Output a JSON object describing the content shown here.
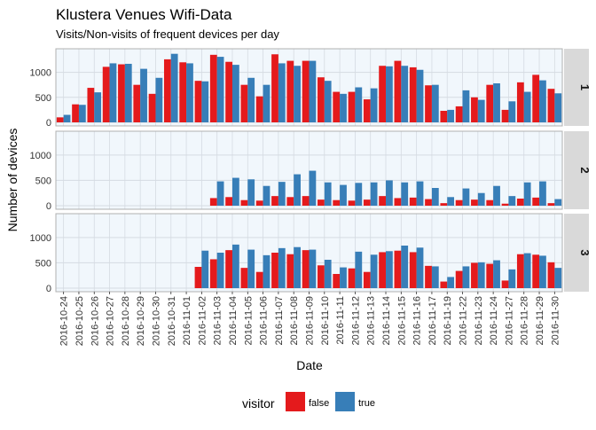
{
  "chart_data": {
    "type": "bar",
    "title": "Klustera Venues Wifi-Data",
    "subtitle": "Visits/Non-visits of frequent devices per day",
    "xlabel": "Date",
    "ylabel": "Number of devices",
    "ylim": [
      0,
      1400
    ],
    "yticks": [
      0,
      500,
      1000
    ],
    "grid": true,
    "legend": {
      "title": "visitor",
      "position": "bottom",
      "items": [
        {
          "label": "false",
          "color": "#e41a1c"
        },
        {
          "label": "true",
          "color": "#377eb8"
        }
      ]
    },
    "categories": [
      "2016-10-24",
      "2016-10-25",
      "2016-10-26",
      "2016-10-27",
      "2016-10-28",
      "2016-10-29",
      "2016-10-30",
      "2016-10-31",
      "2016-11-01",
      "2016-11-02",
      "2016-11-03",
      "2016-11-04",
      "2016-11-05",
      "2016-11-06",
      "2016-11-07",
      "2016-11-08",
      "2016-11-09",
      "2016-11-10",
      "2016-11-11",
      "2016-11-12",
      "2016-11-13",
      "2016-11-14",
      "2016-11-15",
      "2016-11-16",
      "2016-11-17",
      "2016-11-19",
      "2016-11-22",
      "2016-11-23",
      "2016-11-24",
      "2016-11-27",
      "2016-11-28",
      "2016-11-29",
      "2016-11-30"
    ],
    "panels": [
      {
        "label": "1",
        "series": [
          {
            "name": "false",
            "color": "#e41a1c",
            "values": [
              100,
              360,
              690,
              1110,
              1160,
              750,
              570,
              1260,
              1200,
              830,
              1350,
              1210,
              750,
              520,
              1360,
              1230,
              1230,
              900,
              610,
              610,
              460,
              1130,
              1230,
              1100,
              740,
              230,
              320,
              500,
              750,
              250,
              800,
              950,
              670
            ]
          },
          {
            "name": "true",
            "color": "#377eb8",
            "values": [
              150,
              350,
              600,
              1180,
              1170,
              1070,
              890,
              1370,
              1180,
              820,
              1310,
              1150,
              890,
              750,
              1180,
              1130,
              1230,
              830,
              570,
              700,
              680,
              1120,
              1130,
              1050,
              750,
              250,
              640,
              450,
              780,
              420,
              610,
              840,
              580
            ]
          }
        ]
      },
      {
        "label": "2",
        "series": [
          {
            "name": "false",
            "color": "#e41a1c",
            "values": [
              0,
              0,
              0,
              0,
              0,
              0,
              0,
              0,
              0,
              0,
              150,
              170,
              110,
              100,
              190,
              170,
              190,
              120,
              110,
              100,
              120,
              190,
              150,
              160,
              130,
              50,
              110,
              120,
              110,
              40,
              140,
              160,
              50
            ]
          },
          {
            "name": "true",
            "color": "#377eb8",
            "values": [
              0,
              0,
              0,
              0,
              0,
              0,
              0,
              0,
              0,
              0,
              480,
              550,
              520,
              390,
              470,
              620,
              690,
              460,
              410,
              450,
              460,
              500,
              460,
              480,
              350,
              170,
              340,
              250,
              390,
              190,
              460,
              480,
              130
            ]
          }
        ]
      },
      {
        "label": "3",
        "series": [
          {
            "name": "false",
            "color": "#e41a1c",
            "values": [
              0,
              0,
              0,
              0,
              0,
              0,
              0,
              0,
              0,
              420,
              570,
              750,
              400,
              320,
              700,
              670,
              750,
              450,
              280,
              390,
              320,
              710,
              740,
              710,
              440,
              130,
              340,
              500,
              480,
              150,
              670,
              660,
              510
            ]
          },
          {
            "name": "true",
            "color": "#377eb8",
            "values": [
              0,
              0,
              0,
              0,
              0,
              0,
              0,
              0,
              0,
              740,
              700,
              860,
              760,
              650,
              790,
              810,
              760,
              560,
              410,
              720,
              660,
              730,
              840,
              800,
              430,
              220,
              430,
              510,
              550,
              370,
              690,
              640,
              400
            ]
          }
        ]
      }
    ]
  }
}
